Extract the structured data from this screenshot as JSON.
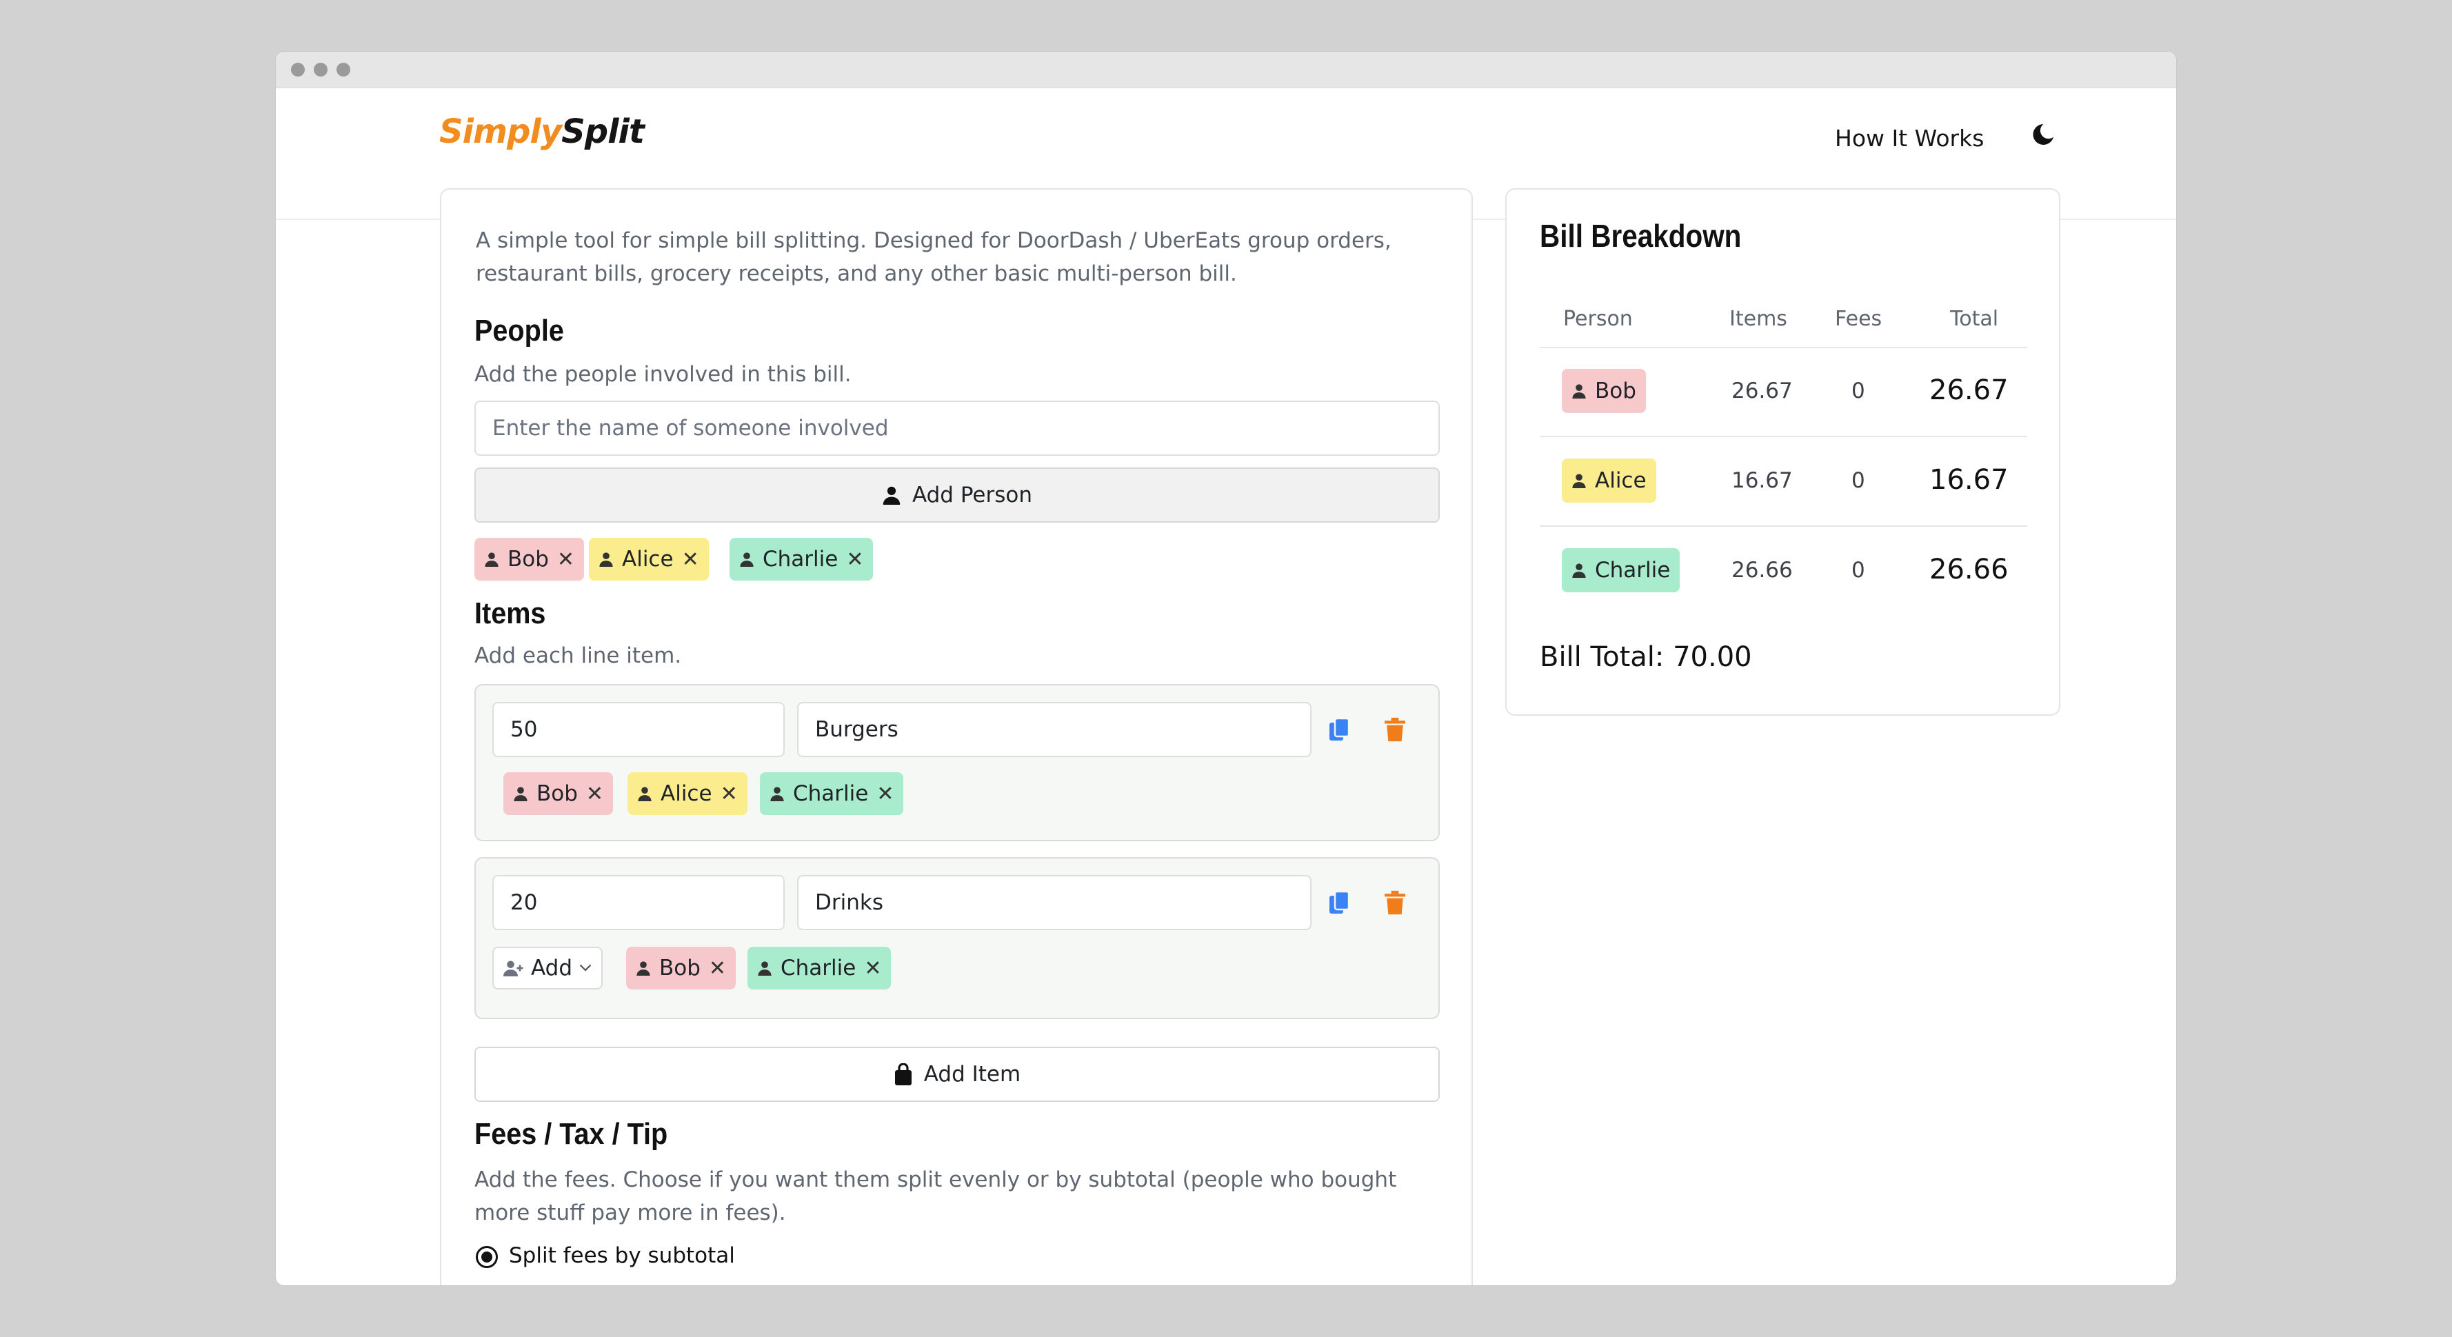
{
  "app": {
    "brand_first": "Simply",
    "brand_second": "Split",
    "nav_how": "How It Works",
    "accent": "#f28c1e"
  },
  "intro": "A simple tool for simple bill splitting. Designed for DoorDash / UberEats group orders, restaurant bills, grocery receipts, and any other basic multi-person bill.",
  "people": {
    "heading": "People",
    "subtitle": "Add the people involved in this bill.",
    "placeholder": "Enter the name of someone involved",
    "add_label": "Add Person",
    "list": [
      {
        "name": "Bob",
        "color": "#f8c9cb"
      },
      {
        "name": "Alice",
        "color": "#fbec8d"
      },
      {
        "name": "Charlie",
        "color": "#a8ebcd"
      }
    ]
  },
  "items": {
    "heading": "Items",
    "subtitle": "Add each line item.",
    "rows": [
      {
        "price": "50",
        "name": "Burgers",
        "people": [
          "Bob",
          "Alice",
          "Charlie"
        ]
      },
      {
        "price": "20",
        "name": "Drinks",
        "add_label": "Add",
        "people": [
          "Bob",
          "Charlie"
        ]
      }
    ],
    "add_label": "Add Item"
  },
  "fees": {
    "heading": "Fees / Tax / Tip",
    "subtitle": "Add the fees. Choose if you want them split evenly or by subtotal (people who bought more stuff pay more in fees).",
    "option_subtotal": "Split fees by subtotal"
  },
  "breakdown": {
    "title": "Bill Breakdown",
    "columns": [
      "Person",
      "Items",
      "Fees",
      "Total"
    ],
    "rows": [
      {
        "person": "Bob",
        "items": "26.67",
        "fees": "0",
        "total": "26.67"
      },
      {
        "person": "Alice",
        "items": "16.67",
        "fees": "0",
        "total": "16.67"
      },
      {
        "person": "Charlie",
        "items": "26.66",
        "fees": "0",
        "total": "26.66"
      }
    ],
    "bill_total": "Bill Total: 70.00"
  }
}
